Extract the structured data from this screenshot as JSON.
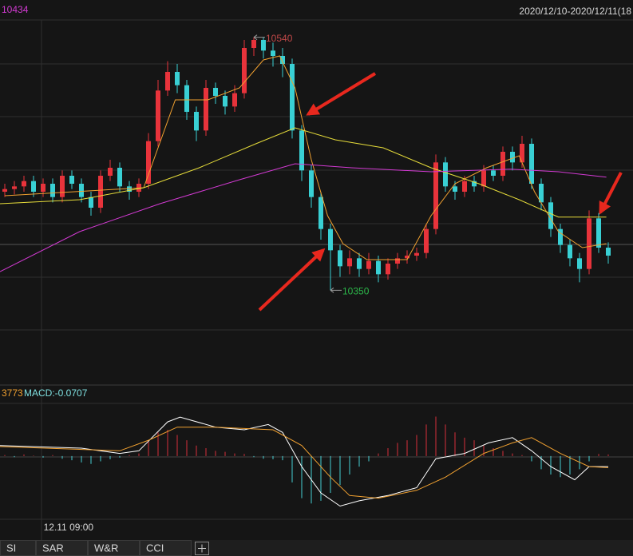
{
  "header": {
    "ma_readout": "10434",
    "date_range": "2020/12/10-2020/12/11(18"
  },
  "chart_data": [
    {
      "type": "candlestick",
      "x": [
        0,
        1,
        2,
        3,
        4,
        5,
        6,
        7,
        8,
        9,
        10,
        11,
        12,
        13,
        14,
        15,
        16,
        17,
        18,
        19,
        20,
        21,
        22,
        23,
        24,
        25,
        26,
        27,
        28,
        29,
        30,
        31,
        32,
        33,
        34,
        35,
        36,
        37,
        38,
        39,
        40,
        41,
        42,
        43,
        44,
        45,
        46,
        47,
        48,
        49,
        50,
        51,
        52,
        53,
        54,
        55,
        56,
        57,
        58,
        59,
        60,
        61,
        62,
        63
      ],
      "open": [
        10424,
        10426,
        10428,
        10432,
        10424,
        10430,
        10420,
        10436,
        10430,
        10420,
        10412,
        10436,
        10442,
        10428,
        10424,
        10430,
        10462,
        10500,
        10514,
        10504,
        10484,
        10470,
        10502,
        10496,
        10488,
        10498,
        10532,
        10538,
        10530,
        10526,
        10520,
        10470,
        10440,
        10420,
        10396,
        10380,
        10368,
        10374,
        10366,
        10372,
        10362,
        10370,
        10374,
        10376,
        10378,
        10396,
        10446,
        10428,
        10424,
        10432,
        10428,
        10440,
        10436,
        10454,
        10446,
        10460,
        10430,
        10416,
        10396,
        10384,
        10374,
        10366,
        10404,
        10382
      ],
      "high": [
        10430,
        10432,
        10436,
        10436,
        10434,
        10434,
        10440,
        10440,
        10434,
        10424,
        10440,
        10448,
        10446,
        10432,
        10434,
        10468,
        10508,
        10522,
        10520,
        10508,
        10488,
        10508,
        10506,
        10500,
        10504,
        10538,
        10540,
        10540,
        10536,
        10532,
        10524,
        10474,
        10444,
        10424,
        10400,
        10384,
        10380,
        10378,
        10378,
        10376,
        10374,
        10378,
        10380,
        10382,
        10400,
        10452,
        10450,
        10432,
        10436,
        10436,
        10444,
        10444,
        10458,
        10458,
        10466,
        10464,
        10434,
        10420,
        10400,
        10388,
        10378,
        10410,
        10408,
        10386
      ],
      "low": [
        10420,
        10422,
        10424,
        10420,
        10420,
        10416,
        10416,
        10426,
        10416,
        10406,
        10408,
        10432,
        10424,
        10418,
        10420,
        10426,
        10458,
        10496,
        10498,
        10478,
        10462,
        10466,
        10490,
        10482,
        10484,
        10494,
        10526,
        10524,
        10518,
        10510,
        10464,
        10432,
        10412,
        10388,
        10350,
        10360,
        10362,
        10360,
        10362,
        10356,
        10358,
        10366,
        10370,
        10372,
        10374,
        10392,
        10424,
        10418,
        10420,
        10424,
        10424,
        10432,
        10432,
        10440,
        10442,
        10426,
        10410,
        10390,
        10378,
        10368,
        10356,
        10362,
        10378,
        10370
      ],
      "close": [
        10426,
        10428,
        10432,
        10424,
        10430,
        10420,
        10436,
        10430,
        10420,
        10412,
        10436,
        10442,
        10428,
        10424,
        10430,
        10462,
        10500,
        10514,
        10504,
        10484,
        10470,
        10502,
        10496,
        10488,
        10498,
        10532,
        10538,
        10530,
        10526,
        10520,
        10470,
        10440,
        10420,
        10396,
        10380,
        10368,
        10374,
        10366,
        10372,
        10362,
        10370,
        10374,
        10376,
        10378,
        10396,
        10446,
        10428,
        10424,
        10432,
        10428,
        10440,
        10436,
        10454,
        10446,
        10460,
        10430,
        10416,
        10396,
        10384,
        10374,
        10366,
        10404,
        10382,
        10376
      ],
      "up_color": "#e8333b",
      "down_color": "#39d0d4",
      "xlim": [
        -0.5,
        65.5
      ],
      "ylim": [
        10280,
        10568
      ],
      "overlays": [
        {
          "color": "#f0a030",
          "x": [
            0,
            14.5,
            17.8,
            21.2,
            24.5,
            27,
            28.7,
            30.3,
            32,
            33.7,
            35.3,
            37.8,
            42,
            44.5,
            47,
            50.3,
            53.7,
            55.3,
            57.8,
            60.3,
            62.8
          ],
          "values": [
            10421,
            10427,
            10493,
            10493,
            10502,
            10523,
            10526,
            10502,
            10448,
            10406,
            10385,
            10373,
            10373,
            10406,
            10430,
            10442,
            10451,
            10424,
            10394,
            10382,
            10385
          ]
        },
        {
          "color": "#e6dc3a",
          "x": [
            -0.5,
            7.8,
            14.5,
            20.3,
            26.2,
            30.3,
            34.5,
            39.5,
            44.5,
            49.5,
            53.7,
            57.8,
            62.8
          ],
          "values": [
            10415,
            10418,
            10427,
            10442,
            10460,
            10472,
            10463,
            10457,
            10442,
            10430,
            10418,
            10405,
            10405
          ]
        },
        {
          "color": "#d23ad2",
          "x": [
            -0.5,
            7.8,
            16.2,
            24.5,
            30.3,
            36.2,
            44.5,
            52.8,
            57.8,
            62.8
          ],
          "values": [
            10364,
            10394,
            10415,
            10433,
            10445,
            10442,
            10439,
            10441,
            10439,
            10435
          ]
        }
      ]
    },
    {
      "type": "macd",
      "readout": [
        "3773",
        "MACD:-0.0707"
      ],
      "xlim": [
        -0.5,
        65.5
      ],
      "ylim": [
        -1.2,
        1.0
      ],
      "xticks": [
        {
          "value": 3.8,
          "label": "12.11 09:00"
        }
      ],
      "histogram": {
        "up_color": "#d8303a",
        "down_color": "#45cfd4",
        "values": [
          0.02,
          -0.02,
          0.03,
          0.01,
          -0.03,
          0.02,
          -0.05,
          -0.08,
          -0.12,
          -0.15,
          -0.1,
          -0.06,
          -0.03,
          0.02,
          0.05,
          0.3,
          0.45,
          0.5,
          0.4,
          0.3,
          0.2,
          0.15,
          0.1,
          0.08,
          0.05,
          0.04,
          -0.02,
          -0.05,
          -0.06,
          -0.08,
          -0.5,
          -0.8,
          -0.9,
          -0.85,
          -0.7,
          -0.55,
          -0.35,
          -0.2,
          -0.1,
          0.05,
          0.15,
          0.25,
          0.3,
          0.4,
          0.6,
          0.75,
          0.6,
          0.45,
          0.35,
          0.3,
          0.2,
          0.15,
          0.1,
          0.05,
          0.02,
          -0.1,
          -0.25,
          -0.35,
          -0.4,
          -0.35,
          -0.25,
          -0.1,
          0.04,
          0.03
        ]
      },
      "lines": [
        {
          "color": "#ffffff",
          "x": [
            -0.5,
            8,
            12,
            14,
            17,
            18.3,
            22,
            25,
            27.5,
            29,
            31,
            33,
            35,
            37,
            40,
            43,
            45,
            48,
            50.5,
            53,
            55,
            57,
            59.5,
            61,
            63
          ],
          "values": [
            0.2,
            0.15,
            0.05,
            0.1,
            0.65,
            0.74,
            0.55,
            0.5,
            0.6,
            0.45,
            -0.2,
            -0.7,
            -0.95,
            -0.85,
            -0.75,
            -0.6,
            -0.05,
            0.05,
            0.25,
            0.35,
            0.1,
            -0.2,
            -0.45,
            -0.2,
            -0.2
          ]
        },
        {
          "color": "#f0a030",
          "x": [
            -0.5,
            12,
            15,
            18,
            22,
            28,
            31,
            34,
            36,
            39,
            43,
            46,
            50,
            53,
            55,
            58,
            61,
            63
          ],
          "values": [
            0.18,
            0.1,
            0.3,
            0.55,
            0.55,
            0.5,
            0.2,
            -0.4,
            -0.75,
            -0.8,
            -0.65,
            -0.4,
            0.05,
            0.25,
            0.35,
            0.05,
            -0.2,
            -0.22
          ]
        }
      ]
    }
  ],
  "tabs": [
    "SI",
    "SAR",
    "W&R",
    "CCI"
  ]
}
